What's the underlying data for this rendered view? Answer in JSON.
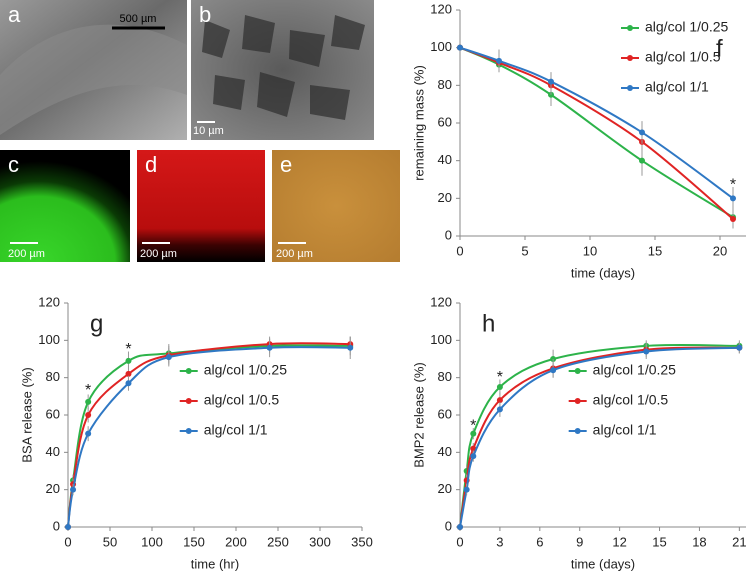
{
  "images": [
    {
      "label": "a",
      "scale_bar": "500 µm"
    },
    {
      "label": "b",
      "scale_bar": "10 µm"
    },
    {
      "label": "c",
      "scale_bar": "200 µm"
    },
    {
      "label": "d",
      "scale_bar": "200 µm"
    },
    {
      "label": "e",
      "scale_bar": "200 µm"
    }
  ],
  "chart_data": [
    {
      "type": "line",
      "panel_label": "f",
      "panel_label_corner": "upper right",
      "legend": "upper right",
      "xlabel": "time (days)",
      "ylabel": "remaining mass (%)",
      "x": [
        0,
        3,
        7,
        14,
        21
      ],
      "xlim": [
        0,
        22
      ],
      "xticks": [
        0,
        5,
        10,
        15,
        20
      ],
      "ylim": [
        0,
        120
      ],
      "yticks": [
        0,
        20,
        40,
        60,
        80,
        100,
        120
      ],
      "grid": false,
      "series": [
        {
          "name": "alg/col 1/0.25",
          "color": "#2db34a",
          "values": [
            100,
            91,
            75,
            40,
            10
          ],
          "errors": [
            0,
            4,
            6,
            8,
            6
          ]
        },
        {
          "name": "alg/col 1/0.5",
          "color": "#e02424",
          "values": [
            100,
            92,
            80,
            50,
            9
          ],
          "errors": [
            0,
            5,
            5,
            7,
            5
          ]
        },
        {
          "name": "alg/col 1/1",
          "color": "#2f78c4",
          "values": [
            100,
            93,
            82,
            55,
            20
          ],
          "errors": [
            0,
            6,
            5,
            6,
            6
          ]
        }
      ],
      "annotations": [
        {
          "x": 21,
          "y": 27,
          "text": "*"
        }
      ]
    },
    {
      "type": "line",
      "panel_label": "g",
      "panel_label_corner": "upper left",
      "legend": "center",
      "xlabel": "time (hr)",
      "ylabel": "BSA release (%)",
      "x": [
        0,
        6,
        24,
        72,
        120,
        240,
        336
      ],
      "xlim": [
        0,
        350
      ],
      "xticks": [
        0,
        50,
        100,
        150,
        200,
        250,
        300,
        350
      ],
      "ylim": [
        0,
        120
      ],
      "yticks": [
        0,
        20,
        40,
        60,
        80,
        100,
        120
      ],
      "grid": false,
      "series": [
        {
          "name": "alg/col 1/0.25",
          "color": "#2db34a",
          "values": [
            0,
            25,
            67,
            89,
            93,
            97,
            97
          ],
          "errors": [
            0,
            3,
            4,
            5,
            5,
            4,
            5
          ]
        },
        {
          "name": "alg/col 1/0.5",
          "color": "#e02424",
          "values": [
            0,
            23,
            60,
            82,
            92,
            98,
            98
          ],
          "errors": [
            0,
            3,
            4,
            5,
            5,
            4,
            4
          ]
        },
        {
          "name": "alg/col 1/1",
          "color": "#2f78c4",
          "values": [
            0,
            20,
            50,
            77,
            91,
            96,
            96
          ],
          "errors": [
            0,
            3,
            4,
            4,
            5,
            5,
            6
          ]
        }
      ],
      "annotations": [
        {
          "x": 24,
          "y": 73,
          "text": "*"
        },
        {
          "x": 72,
          "y": 95,
          "text": "*"
        }
      ]
    },
    {
      "type": "line",
      "panel_label": "h",
      "panel_label_corner": "upper left",
      "legend": "center",
      "xlabel": "time (days)",
      "ylabel": "BMP2 release (%)",
      "x": [
        0,
        0.5,
        1,
        3,
        7,
        14,
        21
      ],
      "xlim": [
        0,
        21.5
      ],
      "xticks": [
        0,
        3,
        6,
        9,
        12,
        15,
        18,
        21
      ],
      "ylim": [
        0,
        120
      ],
      "yticks": [
        0,
        20,
        40,
        60,
        80,
        100,
        120
      ],
      "grid": false,
      "series": [
        {
          "name": "alg/col 1/0.25",
          "color": "#2db34a",
          "values": [
            0,
            30,
            50,
            75,
            90,
            97,
            97
          ],
          "errors": [
            0,
            3,
            3,
            4,
            5,
            3,
            3
          ]
        },
        {
          "name": "alg/col 1/0.5",
          "color": "#e02424",
          "values": [
            0,
            25,
            42,
            68,
            85,
            95,
            96
          ],
          "errors": [
            0,
            3,
            3,
            4,
            5,
            4,
            3
          ]
        },
        {
          "name": "alg/col 1/1",
          "color": "#2f78c4",
          "values": [
            0,
            20,
            38,
            63,
            84,
            94,
            96
          ],
          "errors": [
            0,
            3,
            3,
            4,
            4,
            4,
            3
          ]
        }
      ],
      "annotations": [
        {
          "x": 1,
          "y": 54,
          "text": "*"
        },
        {
          "x": 3,
          "y": 80,
          "text": "*"
        }
      ]
    }
  ]
}
